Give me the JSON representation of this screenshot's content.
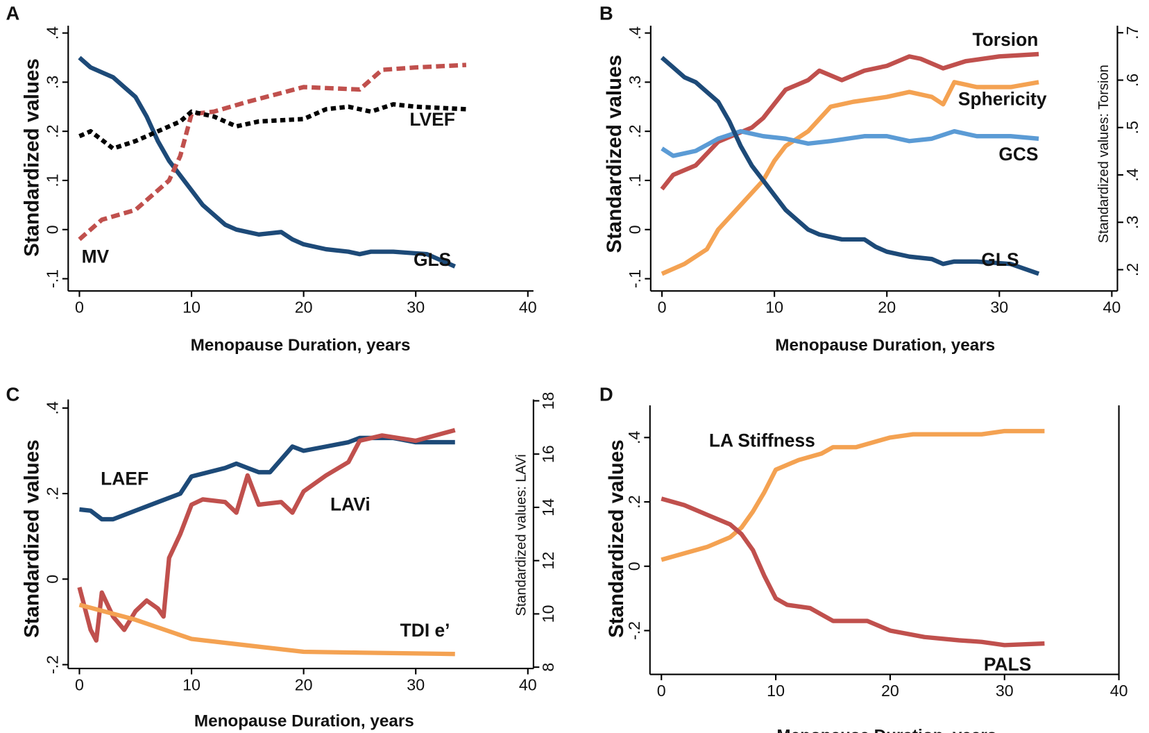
{
  "chart_data": [
    {
      "type": "line",
      "panel": "A",
      "x_label": "Menopause Duration, years",
      "y_label": "Standardized values",
      "xlim": [
        -1,
        40.5
      ],
      "xticks": [
        0,
        10,
        20,
        30,
        40
      ],
      "ylim": [
        -0.125,
        0.415
      ],
      "yticks": [
        {
          "value": -0.1,
          "label": "-.1"
        },
        0,
        {
          "value": 0.1,
          "label": ".1"
        },
        {
          "value": 0.2,
          "label": ".2"
        },
        {
          "value": 0.3,
          "label": ".3"
        },
        {
          "value": 0.4,
          "label": ".4"
        }
      ],
      "series": [
        {
          "name": "GLS",
          "color": "#1d4a78",
          "style": "solid",
          "x": [
            0,
            1,
            2,
            3,
            4,
            5,
            6,
            7,
            8,
            9,
            10,
            11,
            12,
            13,
            14,
            16,
            18,
            19,
            20,
            22,
            24,
            25,
            26,
            28,
            31,
            33.5
          ],
          "values": [
            0.35,
            0.33,
            0.32,
            0.31,
            0.29,
            0.27,
            0.23,
            0.18,
            0.14,
            0.11,
            0.08,
            0.05,
            0.03,
            0.01,
            0.0,
            -0.01,
            -0.005,
            -0.02,
            -0.03,
            -0.04,
            -0.045,
            -0.05,
            -0.045,
            -0.045,
            -0.05,
            -0.075
          ]
        },
        {
          "name": "MV",
          "color": "#c0504d",
          "style": "dashed",
          "x": [
            0,
            2,
            5,
            8,
            9,
            10,
            12,
            15,
            20,
            25,
            27,
            30,
            34.5
          ],
          "values": [
            -0.02,
            0.02,
            0.04,
            0.1,
            0.15,
            0.235,
            0.24,
            0.26,
            0.29,
            0.285,
            0.325,
            0.33,
            0.335
          ]
        },
        {
          "name": "LVEF",
          "color": "#000000",
          "style": "dotted",
          "x": [
            0,
            1,
            3,
            5,
            7,
            9,
            10,
            12,
            14,
            16,
            20,
            22,
            24,
            26,
            28,
            30,
            34.5
          ],
          "values": [
            0.19,
            0.2,
            0.165,
            0.18,
            0.2,
            0.22,
            0.24,
            0.23,
            0.21,
            0.22,
            0.225,
            0.245,
            0.25,
            0.24,
            0.255,
            0.25,
            0.245
          ]
        }
      ]
    },
    {
      "type": "line",
      "panel": "B",
      "x_label": "Menopause Duration, years",
      "y_label": "Standardized values",
      "y2_label": "Standardized values: Torsion",
      "xlim": [
        -1,
        40.5
      ],
      "xticks": [
        0,
        10,
        20,
        30,
        40
      ],
      "ylim": [
        -0.125,
        0.415
      ],
      "yticks": [
        {
          "value": -0.1,
          "label": "-.1"
        },
        0,
        {
          "value": 0.1,
          "label": ".1"
        },
        {
          "value": 0.2,
          "label": ".2"
        },
        {
          "value": 0.3,
          "label": ".3"
        },
        {
          "value": 0.4,
          "label": ".4"
        }
      ],
      "y2lim": [
        0.155,
        0.715
      ],
      "y2ticks": [
        {
          "value": 0.2,
          "label": ".2"
        },
        {
          "value": 0.3,
          "label": ".3"
        },
        {
          "value": 0.4,
          "label": ".4"
        },
        {
          "value": 0.5,
          "label": ".5"
        },
        {
          "value": 0.6,
          "label": ".6"
        },
        {
          "value": 0.7,
          "label": ".7"
        }
      ],
      "series": [
        {
          "name": "Torsion",
          "color": "#c0504d",
          "style": "solid",
          "axis": "y2",
          "x": [
            0,
            1,
            3,
            5,
            6,
            8,
            9,
            10,
            11,
            13,
            14,
            16,
            18,
            20,
            22,
            23,
            25,
            27,
            30,
            33.5
          ],
          "values": [
            0.37,
            0.4,
            0.42,
            0.47,
            0.48,
            0.5,
            0.52,
            0.55,
            0.58,
            0.6,
            0.62,
            0.6,
            0.62,
            0.63,
            0.65,
            0.645,
            0.625,
            0.64,
            0.65,
            0.655
          ]
        },
        {
          "name": "Sphericity",
          "color": "#f4a252",
          "style": "solid",
          "x": [
            0,
            2,
            4,
            5,
            7,
            9,
            10,
            11,
            13,
            15,
            17,
            20,
            22,
            24,
            25,
            26,
            28,
            31,
            33.5
          ],
          "values": [
            -0.09,
            -0.07,
            -0.04,
            0.0,
            0.05,
            0.1,
            0.14,
            0.17,
            0.2,
            0.25,
            0.26,
            0.27,
            0.28,
            0.27,
            0.255,
            0.3,
            0.29,
            0.29,
            0.3
          ]
        },
        {
          "name": "GCS",
          "color": "#5b9bd5",
          "style": "solid",
          "x": [
            0,
            1,
            3,
            5,
            7,
            9,
            11,
            13,
            15,
            18,
            20,
            22,
            24,
            26,
            28,
            31,
            33.5
          ],
          "values": [
            0.165,
            0.15,
            0.16,
            0.185,
            0.2,
            0.19,
            0.185,
            0.175,
            0.18,
            0.19,
            0.19,
            0.18,
            0.185,
            0.2,
            0.19,
            0.19,
            0.185
          ]
        },
        {
          "name": "GLS",
          "color": "#1d4a78",
          "style": "solid",
          "x": [
            0,
            1,
            2,
            3,
            4,
            5,
            6,
            7,
            8,
            9,
            10,
            11,
            12,
            13,
            14,
            16,
            18,
            19,
            20,
            22,
            24,
            25,
            26,
            28,
            31,
            33.5
          ],
          "values": [
            0.35,
            0.33,
            0.31,
            0.3,
            0.28,
            0.26,
            0.22,
            0.17,
            0.13,
            0.1,
            0.07,
            0.04,
            0.02,
            0.0,
            -0.01,
            -0.02,
            -0.02,
            -0.035,
            -0.045,
            -0.055,
            -0.06,
            -0.07,
            -0.065,
            -0.065,
            -0.07,
            -0.09
          ]
        }
      ]
    },
    {
      "type": "line",
      "panel": "C",
      "x_label": "Menopause Duration, years",
      "y_label": "Standardized values",
      "y2_label": "Standardized values: LAVi",
      "xlim": [
        -1,
        40.5
      ],
      "xticks": [
        0,
        10,
        20,
        30,
        40
      ],
      "ylim": [
        -0.209,
        0.42
      ],
      "yticks": [
        {
          "value": -0.2,
          "label": "-.2"
        },
        0,
        {
          "value": 0.2,
          "label": ".2"
        },
        {
          "value": 0.4,
          "label": ".4"
        }
      ],
      "y2lim": [
        7.95,
        18.05
      ],
      "y2ticks": [
        8,
        10,
        12,
        14,
        16,
        18
      ],
      "series": [
        {
          "name": "LAEF",
          "color": "#1d4a78",
          "style": "solid",
          "x": [
            0,
            1,
            2,
            3,
            5,
            7,
            9,
            10,
            13,
            14,
            15,
            16,
            17,
            18,
            19,
            20,
            22,
            24,
            25,
            28,
            30,
            33.5
          ],
          "values": [
            0.163,
            0.16,
            0.14,
            0.14,
            0.16,
            0.18,
            0.2,
            0.24,
            0.26,
            0.27,
            0.26,
            0.25,
            0.25,
            0.28,
            0.31,
            0.3,
            0.31,
            0.32,
            0.33,
            0.33,
            0.32,
            0.32
          ]
        },
        {
          "name": "LAVi",
          "color": "#c0504d",
          "style": "solid",
          "axis": "y2",
          "x": [
            0,
            1,
            1.5,
            2,
            3,
            4,
            5,
            6,
            7,
            7.5,
            8,
            9,
            10,
            11,
            13,
            14,
            15,
            16,
            18,
            19,
            20,
            22,
            24,
            25,
            27,
            30,
            33.5
          ],
          "values": [
            11.0,
            9.4,
            9.0,
            10.8,
            9.9,
            9.4,
            10.1,
            10.5,
            10.2,
            9.9,
            12.1,
            13.0,
            14.1,
            14.3,
            14.2,
            13.8,
            15.2,
            14.1,
            14.2,
            13.8,
            14.6,
            15.2,
            15.7,
            16.5,
            16.7,
            16.5,
            16.9
          ]
        },
        {
          "name": "TDI e’",
          "color": "#f4a252",
          "style": "solid",
          "x": [
            0,
            5,
            10,
            15,
            20,
            25,
            33.5
          ],
          "values": [
            -0.06,
            -0.095,
            -0.14,
            -0.155,
            -0.17,
            -0.172,
            -0.175
          ]
        }
      ]
    },
    {
      "type": "line",
      "panel": "D",
      "x_label": "Menopause Duration, years",
      "y_label": "Standardized values",
      "right_axis_line": true,
      "xlim": [
        -1,
        40
      ],
      "xticks": [
        0,
        10,
        20,
        30,
        40
      ],
      "ylim": [
        -0.336,
        0.5
      ],
      "yticks": [
        {
          "value": -0.2,
          "label": "-.2"
        },
        0,
        {
          "value": 0.2,
          "label": ".2"
        },
        {
          "value": 0.4,
          "label": ".4"
        }
      ],
      "series": [
        {
          "name": "LA Stiffness",
          "color": "#f4a252",
          "style": "solid",
          "x": [
            0,
            2,
            4,
            6,
            7,
            8,
            9,
            10,
            12,
            14,
            15,
            17,
            19,
            20,
            22,
            25,
            28,
            30,
            33.5
          ],
          "values": [
            0.02,
            0.04,
            0.06,
            0.09,
            0.12,
            0.17,
            0.23,
            0.3,
            0.33,
            0.35,
            0.37,
            0.37,
            0.39,
            0.4,
            0.41,
            0.41,
            0.41,
            0.42,
            0.42
          ]
        },
        {
          "name": "PALS",
          "color": "#c0504d",
          "style": "solid",
          "x": [
            0,
            2,
            4,
            6,
            7,
            8,
            9,
            10,
            11,
            13,
            15,
            18,
            20,
            23,
            26,
            28,
            30,
            33.5
          ],
          "values": [
            0.21,
            0.19,
            0.16,
            0.13,
            0.1,
            0.05,
            -0.03,
            -0.1,
            -0.12,
            -0.13,
            -0.17,
            -0.17,
            -0.2,
            -0.22,
            -0.23,
            -0.235,
            -0.245,
            -0.24
          ]
        }
      ]
    }
  ]
}
